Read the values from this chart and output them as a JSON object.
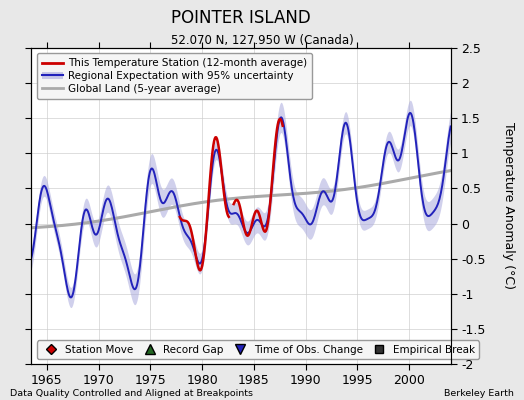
{
  "title": "POINTER ISLAND",
  "subtitle": "52.070 N, 127.950 W (Canada)",
  "ylabel": "Temperature Anomaly (°C)",
  "xlabel_left": "Data Quality Controlled and Aligned at Breakpoints",
  "xlabel_right": "Berkeley Earth",
  "ylim": [
    -2.0,
    2.5
  ],
  "xlim": [
    1963.5,
    2004.0
  ],
  "xticks": [
    1965,
    1970,
    1975,
    1980,
    1985,
    1990,
    1995,
    2000
  ],
  "yticks": [
    -2,
    -1.5,
    -1,
    -0.5,
    0,
    0.5,
    1,
    1.5,
    2,
    2.5
  ],
  "bg_color": "#e8e8e8",
  "plot_bg_color": "#ffffff",
  "regional_color": "#2222bb",
  "regional_fill_color": "#aaaadd",
  "station_color": "#cc0000",
  "global_color": "#aaaaaa",
  "legend1_entries": [
    {
      "label": "This Temperature Station (12-month average)",
      "color": "#cc0000"
    },
    {
      "label": "Regional Expectation with 95% uncertainty",
      "color": "#2222bb",
      "fill": "#aaaadd"
    },
    {
      "label": "Global Land (5-year average)",
      "color": "#aaaaaa"
    }
  ],
  "legend2_entries": [
    {
      "label": "Station Move",
      "marker": "D",
      "color": "#cc0000"
    },
    {
      "label": "Record Gap",
      "marker": "^",
      "color": "#226622"
    },
    {
      "label": "Time of Obs. Change",
      "marker": "v",
      "color": "#2222bb"
    },
    {
      "label": "Empirical Break",
      "marker": "s",
      "color": "#333333"
    }
  ]
}
